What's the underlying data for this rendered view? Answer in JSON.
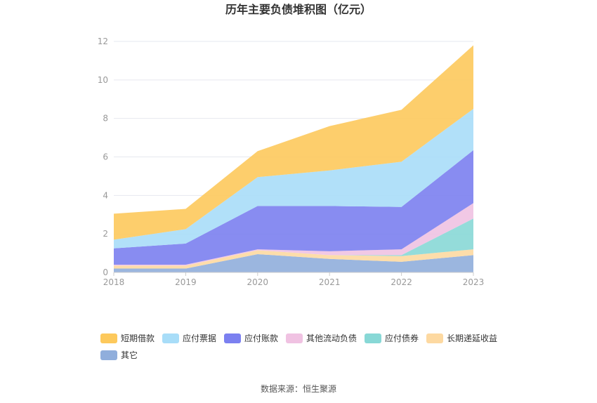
{
  "chart_data": {
    "type": "area",
    "stacked": true,
    "title": "历年主要负债堆积图（亿元）",
    "categories": [
      "2018",
      "2019",
      "2020",
      "2021",
      "2022",
      "2023"
    ],
    "ylim": [
      0,
      12
    ],
    "yticks": [
      "0",
      "2",
      "4",
      "6",
      "8",
      "10",
      "12"
    ],
    "grid": true,
    "legend_position": "bottom-left",
    "series": [
      {
        "name": "其它",
        "color": "#90aedc",
        "values": [
          0.2,
          0.2,
          0.95,
          0.7,
          0.55,
          0.9
        ]
      },
      {
        "name": "长期递延收益",
        "color": "#fdd9a1",
        "values": [
          0.15,
          0.15,
          0.2,
          0.2,
          0.3,
          0.3
        ]
      },
      {
        "name": "应付债券",
        "color": "#88d8d6",
        "values": [
          0,
          0,
          0,
          0,
          0.05,
          1.6
        ]
      },
      {
        "name": "其他流动负债",
        "color": "#f0c2e2",
        "values": [
          0.05,
          0.05,
          0.05,
          0.2,
          0.3,
          0.8
        ]
      },
      {
        "name": "应付账款",
        "color": "#7b80f0",
        "values": [
          0.85,
          1.1,
          2.25,
          2.35,
          2.2,
          2.75
        ]
      },
      {
        "name": "应付票据",
        "color": "#a8ddf8",
        "values": [
          0.45,
          0.75,
          1.5,
          1.85,
          2.35,
          2.15
        ]
      },
      {
        "name": "短期借款",
        "color": "#fdc95c",
        "values": [
          1.35,
          1.05,
          1.35,
          2.3,
          2.7,
          3.3
        ]
      }
    ],
    "legend_order": [
      "短期借款",
      "应付票据",
      "应付账款",
      "其他流动负债",
      "应付债券",
      "长期递延收益",
      "其它"
    ]
  },
  "footer": {
    "source": "数据来源：恒生聚源"
  }
}
